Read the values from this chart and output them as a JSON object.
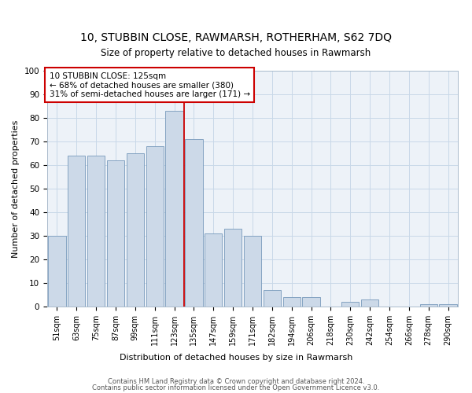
{
  "title": "10, STUBBIN CLOSE, RAWMARSH, ROTHERHAM, S62 7DQ",
  "subtitle": "Size of property relative to detached houses in Rawmarsh",
  "xlabel": "Distribution of detached houses by size in Rawmarsh",
  "ylabel": "Number of detached properties",
  "categories": [
    "51sqm",
    "63sqm",
    "75sqm",
    "87sqm",
    "99sqm",
    "111sqm",
    "123sqm",
    "135sqm",
    "147sqm",
    "159sqm",
    "171sqm",
    "182sqm",
    "194sqm",
    "206sqm",
    "218sqm",
    "230sqm",
    "242sqm",
    "254sqm",
    "266sqm",
    "278sqm",
    "290sqm"
  ],
  "values": [
    30,
    64,
    64,
    62,
    65,
    68,
    83,
    71,
    31,
    33,
    30,
    7,
    4,
    4,
    0,
    2,
    3,
    0,
    0,
    1,
    1
  ],
  "bar_color": "#ccd9e8",
  "bar_edge_color": "#7799bb",
  "property_line_x": 6.5,
  "annotation_line1": "10 STUBBIN CLOSE: 125sqm",
  "annotation_line2": "← 68% of detached houses are smaller (380)",
  "annotation_line3": "31% of semi-detached houses are larger (171) →",
  "vline_color": "#cc0000",
  "annotation_box_color": "#cc0000",
  "ylim": [
    0,
    100
  ],
  "grid_color": "#c8d8e8",
  "background_color": "#edf2f8",
  "footnote1": "Contains HM Land Registry data © Crown copyright and database right 2024.",
  "footnote2": "Contains public sector information licensed under the Open Government Licence v3.0."
}
